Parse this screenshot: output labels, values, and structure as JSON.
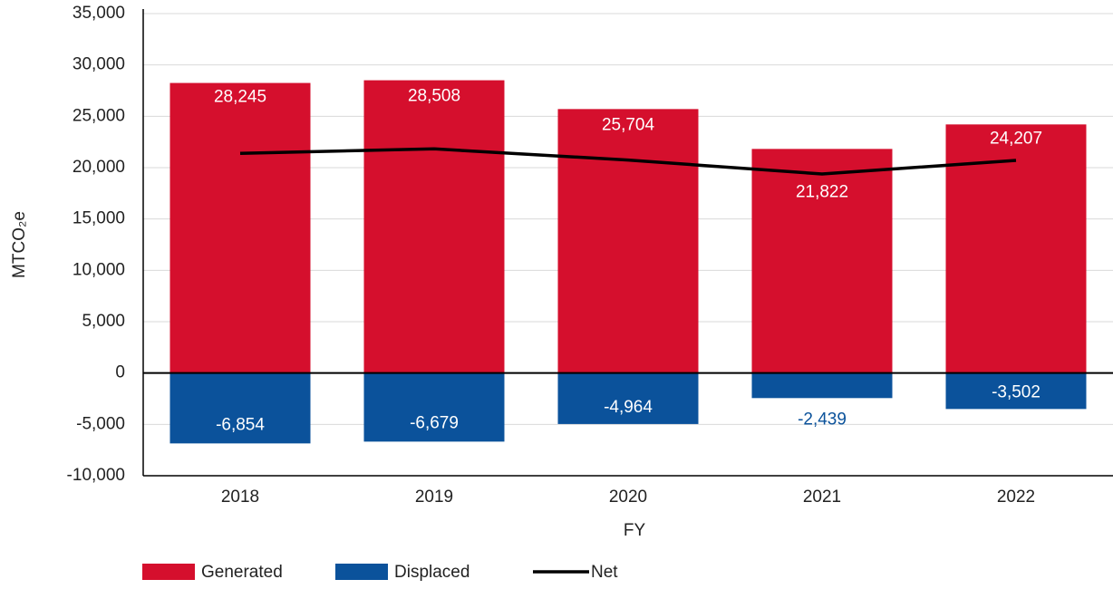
{
  "chart_data": {
    "type": "bar",
    "stacked": true,
    "xlabel": "FY",
    "ylabel": "MTCO₂e",
    "categories": [
      "2018",
      "2019",
      "2020",
      "2021",
      "2022"
    ],
    "series": [
      {
        "name": "Generated",
        "color": "#d50f2d",
        "values": [
          28245,
          28508,
          25704,
          21822,
          24207
        ],
        "value_labels": [
          "28,245",
          "28,508",
          "25,704",
          "21,822",
          "24,207"
        ]
      },
      {
        "name": "Displaced",
        "color": "#0b529b",
        "values": [
          -6854,
          -6679,
          -4964,
          -2439,
          -3502
        ],
        "value_labels": [
          "-6,854",
          "-6,679",
          "-4,964",
          "-2,439",
          "-3,502"
        ]
      },
      {
        "name": "Net",
        "color": "#000000",
        "type": "line",
        "values": [
          21391,
          21829,
          20740,
          19383,
          20705
        ]
      }
    ],
    "ylim": [
      -10000,
      35000
    ],
    "yticks": [
      {
        "value": -10000,
        "label": "-10,000"
      },
      {
        "value": -5000,
        "label": "-5,000"
      },
      0,
      {
        "value": 5000,
        "label": "5,000"
      },
      {
        "value": 10000,
        "label": "10,000"
      },
      {
        "value": 15000,
        "label": "15,000"
      },
      {
        "value": 20000,
        "label": "20,000"
      },
      {
        "value": 25000,
        "label": "25,000"
      },
      {
        "value": 30000,
        "label": "30,000"
      },
      {
        "value": 35000,
        "label": "35,000"
      }
    ],
    "grid": true,
    "legend": "bottom"
  }
}
